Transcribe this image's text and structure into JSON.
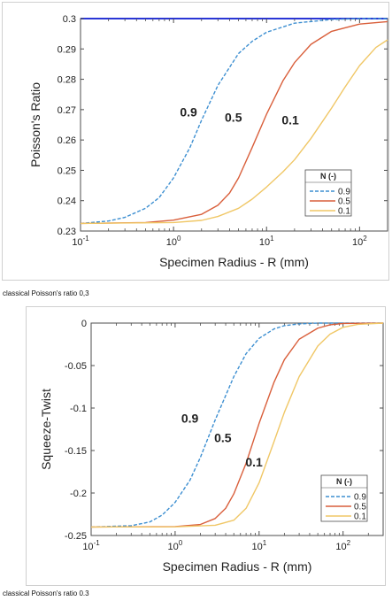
{
  "captions": [
    "classical Poisson's ratio 0,3",
    "classical Poisson's ratio 0.3"
  ],
  "chart_data": [
    {
      "type": "line",
      "xlabel": "Specimen Radius - R (mm)",
      "ylabel": "Poisson's Ratio",
      "x_scale": "log",
      "xlim": [
        0.1,
        200
      ],
      "ylim": [
        0.23,
        0.3
      ],
      "x_ticks": [
        {
          "value": 0.1,
          "label": "10",
          "exp": "-1"
        },
        {
          "value": 1,
          "label": "10",
          "exp": "0"
        },
        {
          "value": 10,
          "label": "10",
          "exp": "1"
        },
        {
          "value": 100,
          "label": "10",
          "exp": "2"
        }
      ],
      "y_ticks": [
        {
          "value": 0.23,
          "label": "0.23"
        },
        {
          "value": 0.24,
          "label": "0.24"
        },
        {
          "value": 0.25,
          "label": "0.25"
        },
        {
          "value": 0.26,
          "label": "0.26"
        },
        {
          "value": 0.27,
          "label": "0.27"
        },
        {
          "value": 0.28,
          "label": "0.28"
        },
        {
          "value": 0.29,
          "label": "0.29"
        },
        {
          "value": 0.3,
          "label": "0.3"
        }
      ],
      "grid": false,
      "legend": {
        "title": "N (-)",
        "position": "bottom-right"
      },
      "reference_line": {
        "y": 0.3,
        "color": "#2a36d6"
      },
      "series": [
        {
          "name": "0.9",
          "color": "#3d8fd1",
          "dash": true,
          "points": [
            [
              0.1,
              0.2325
            ],
            [
              0.2,
              0.2333
            ],
            [
              0.3,
              0.2345
            ],
            [
              0.5,
              0.2375
            ],
            [
              0.7,
              0.241
            ],
            [
              1,
              0.2475
            ],
            [
              1.5,
              0.2575
            ],
            [
              2,
              0.2665
            ],
            [
              3,
              0.278
            ],
            [
              5,
              0.2885
            ],
            [
              7,
              0.2925
            ],
            [
              10,
              0.2955
            ],
            [
              20,
              0.2985
            ],
            [
              50,
              0.2997
            ],
            [
              100,
              0.3
            ],
            [
              200,
              0.3
            ]
          ]
        },
        {
          "name": "0.5",
          "color": "#d95f3b",
          "dash": false,
          "points": [
            [
              0.1,
              0.2325
            ],
            [
              0.5,
              0.2328
            ],
            [
              1,
              0.2336
            ],
            [
              2,
              0.2355
            ],
            [
              3,
              0.2385
            ],
            [
              4,
              0.2425
            ],
            [
              5,
              0.2475
            ],
            [
              7,
              0.2575
            ],
            [
              10,
              0.2685
            ],
            [
              15,
              0.2795
            ],
            [
              20,
              0.2855
            ],
            [
              30,
              0.2915
            ],
            [
              50,
              0.2958
            ],
            [
              100,
              0.2982
            ],
            [
              200,
              0.299
            ]
          ]
        },
        {
          "name": "0.1",
          "color": "#f0c766",
          "dash": false,
          "points": [
            [
              0.1,
              0.2325
            ],
            [
              1,
              0.2328
            ],
            [
              2,
              0.2335
            ],
            [
              3,
              0.2348
            ],
            [
              5,
              0.2375
            ],
            [
              7,
              0.2405
            ],
            [
              10,
              0.2445
            ],
            [
              15,
              0.2495
            ],
            [
              20,
              0.2535
            ],
            [
              30,
              0.2605
            ],
            [
              50,
              0.2705
            ],
            [
              70,
              0.2775
            ],
            [
              100,
              0.2845
            ],
            [
              150,
              0.2905
            ],
            [
              200,
              0.293
            ]
          ]
        }
      ],
      "annotations": [
        {
          "text": "0.9",
          "x": 1.45,
          "y": 0.2678
        },
        {
          "text": "0.5",
          "x": 4.4,
          "y": 0.266
        },
        {
          "text": "0.1",
          "x": 18,
          "y": 0.2652
        }
      ]
    },
    {
      "type": "line",
      "xlabel": "Specimen Radius - R (mm)",
      "ylabel": "Squeeze-Twist",
      "x_scale": "log",
      "xlim": [
        0.1,
        300
      ],
      "ylim": [
        -0.25,
        0
      ],
      "x_ticks": [
        {
          "value": 0.1,
          "label": "10",
          "exp": "-1"
        },
        {
          "value": 1,
          "label": "10",
          "exp": "0"
        },
        {
          "value": 10,
          "label": "10",
          "exp": "1"
        },
        {
          "value": 100,
          "label": "10",
          "exp": "2"
        }
      ],
      "y_ticks": [
        {
          "value": -0.25,
          "label": "-0.25"
        },
        {
          "value": -0.2,
          "label": "-0.2"
        },
        {
          "value": -0.15,
          "label": "-0.15"
        },
        {
          "value": -0.1,
          "label": "-0.1"
        },
        {
          "value": -0.05,
          "label": "-0.05"
        },
        {
          "value": 0,
          "label": "0"
        }
      ],
      "grid": false,
      "legend": {
        "title": "N (-)",
        "position": "bottom-right"
      },
      "series": [
        {
          "name": "0.9",
          "color": "#3d8fd1",
          "dash": true,
          "points": [
            [
              0.1,
              -0.24
            ],
            [
              0.3,
              -0.2385
            ],
            [
              0.5,
              -0.234
            ],
            [
              0.7,
              -0.226
            ],
            [
              1,
              -0.211
            ],
            [
              1.5,
              -0.185
            ],
            [
              2,
              -0.158
            ],
            [
              3,
              -0.114
            ],
            [
              5,
              -0.063
            ],
            [
              7,
              -0.036
            ],
            [
              10,
              -0.018
            ],
            [
              15,
              -0.007
            ],
            [
              20,
              -0.003
            ],
            [
              30,
              -0.001
            ],
            [
              50,
              0
            ],
            [
              300,
              0
            ]
          ]
        },
        {
          "name": "0.5",
          "color": "#d95f3b",
          "dash": false,
          "points": [
            [
              0.1,
              -0.24
            ],
            [
              1,
              -0.2395
            ],
            [
              2,
              -0.237
            ],
            [
              3,
              -0.23
            ],
            [
              4,
              -0.218
            ],
            [
              5,
              -0.201
            ],
            [
              7,
              -0.165
            ],
            [
              10,
              -0.118
            ],
            [
              15,
              -0.07
            ],
            [
              20,
              -0.043
            ],
            [
              30,
              -0.019
            ],
            [
              50,
              -0.006
            ],
            [
              70,
              -0.002
            ],
            [
              100,
              -0.0005
            ],
            [
              300,
              0
            ]
          ]
        },
        {
          "name": "0.1",
          "color": "#f0c766",
          "dash": false,
          "points": [
            [
              0.1,
              -0.24
            ],
            [
              1,
              -0.2398
            ],
            [
              3,
              -0.238
            ],
            [
              5,
              -0.232
            ],
            [
              7,
              -0.218
            ],
            [
              10,
              -0.188
            ],
            [
              15,
              -0.14
            ],
            [
              20,
              -0.105
            ],
            [
              30,
              -0.063
            ],
            [
              50,
              -0.027
            ],
            [
              70,
              -0.013
            ],
            [
              100,
              -0.005
            ],
            [
              150,
              -0.0015
            ],
            [
              300,
              0
            ]
          ]
        }
      ],
      "annotations": [
        {
          "text": "0.9",
          "x": 1.5,
          "y": -0.117
        },
        {
          "text": "0.5",
          "x": 3.7,
          "y": -0.14
        },
        {
          "text": "0.1",
          "x": 8.7,
          "y": -0.169
        }
      ]
    }
  ]
}
